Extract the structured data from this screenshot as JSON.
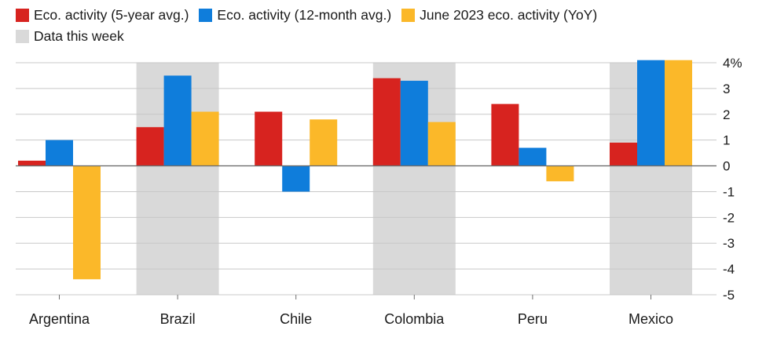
{
  "chart_data": {
    "type": "bar",
    "categories": [
      "Argentina",
      "Brazil",
      "Chile",
      "Colombia",
      "Peru",
      "Mexico"
    ],
    "series": [
      {
        "name": "Eco. activity (5-year avg.)",
        "color": "#d7231f",
        "values": [
          0.2,
          1.5,
          2.1,
          3.4,
          2.4,
          0.9
        ]
      },
      {
        "name": "Eco. activity (12-month avg.)",
        "color": "#0f7ddb",
        "values": [
          1.0,
          3.5,
          -1.0,
          3.3,
          0.7,
          4.1
        ]
      },
      {
        "name": "June 2023 eco. activity (YoY)",
        "color": "#fbb829",
        "values": [
          -4.4,
          2.1,
          1.8,
          1.7,
          -0.6,
          4.1
        ]
      }
    ],
    "highlight": {
      "name": "Data this week",
      "color": "#d9d9d9",
      "categories": [
        "Brazil",
        "Colombia",
        "Mexico"
      ]
    },
    "y_ticks": [
      4,
      3,
      2,
      1,
      0,
      -1,
      -2,
      -3,
      -4,
      -5
    ],
    "y_tick_labels": [
      "4%",
      "3",
      "2",
      "1",
      "0",
      "-1",
      "-2",
      "-3",
      "-4",
      "-5"
    ],
    "ylim": [
      -5,
      4
    ],
    "grid": true,
    "legend_position": "top-left",
    "y_axis_position": "right"
  }
}
